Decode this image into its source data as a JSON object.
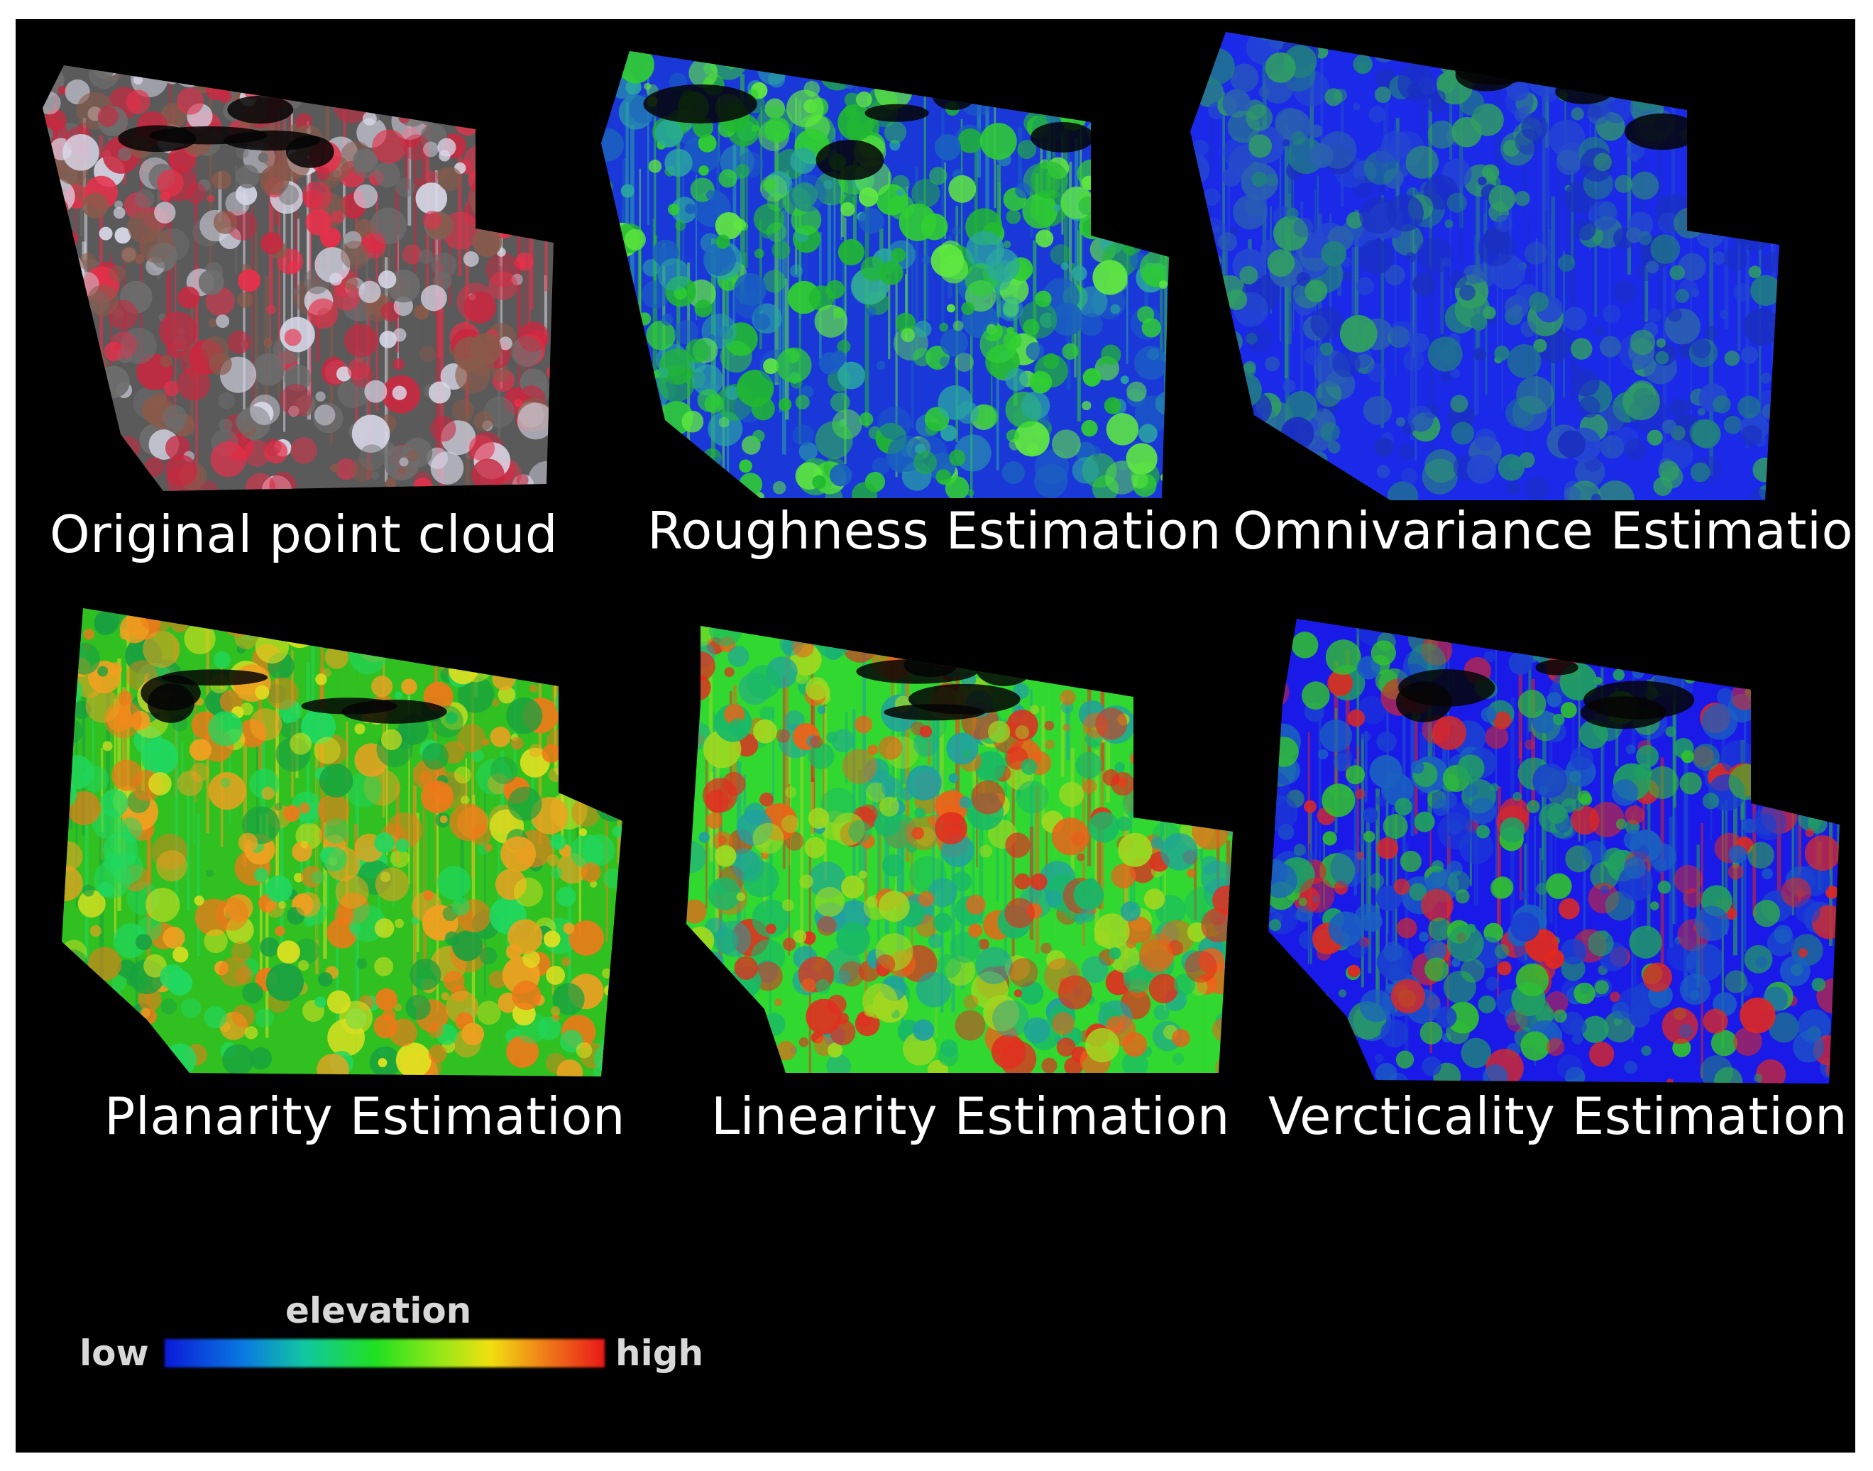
{
  "panels": [
    {
      "id": "original",
      "caption": "Original point cloud",
      "palette": [
        "#5a5a5a",
        "#e8304a",
        "#c82840",
        "#6e6e6e",
        "#d8d8e8",
        "#8a5a4a"
      ]
    },
    {
      "id": "roughness",
      "caption": "Roughness Estimation",
      "palette": [
        "#1a38d8",
        "#2aa8a0",
        "#30d030",
        "#60e840",
        "#1a60c0",
        "#20b830"
      ]
    },
    {
      "id": "omnivariance",
      "caption": "Omnivariance Estimation",
      "palette": [
        "#1a2ae8",
        "#2448d0",
        "#208080",
        "#30a060",
        "#1a30c0",
        "#2a60b0"
      ]
    },
    {
      "id": "planarity",
      "caption": "Planarity Estimation",
      "palette": [
        "#30c020",
        "#f0a020",
        "#e0e020",
        "#18a040",
        "#f07818",
        "#20d860"
      ]
    },
    {
      "id": "linearity",
      "caption": "Linearity Estimation",
      "palette": [
        "#30d830",
        "#18b868",
        "#e03020",
        "#a0d820",
        "#20a0a0",
        "#f06018"
      ]
    },
    {
      "id": "verticality",
      "caption": "Vercticality Estimation",
      "palette": [
        "#1a1ae8",
        "#1a40d0",
        "#20a060",
        "#e02820",
        "#30c030",
        "#1a60c0"
      ]
    }
  ],
  "legend": {
    "title": "elevation",
    "low": "low",
    "high": "high",
    "colors": [
      "#0a1ad8",
      "#20e020",
      "#f0e010",
      "#e81818"
    ]
  }
}
